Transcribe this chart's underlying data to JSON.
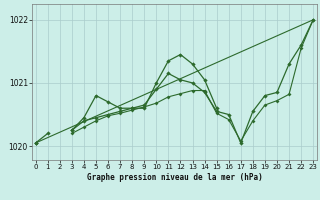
{
  "title": "Graphe pression niveau de la mer (hPa)",
  "background_color": "#cceee8",
  "grid_color": "#aacccc",
  "line_color": "#2d6a2d",
  "x_values": [
    0,
    1,
    2,
    3,
    4,
    5,
    6,
    7,
    8,
    9,
    10,
    11,
    12,
    13,
    14,
    15,
    16,
    17,
    18,
    19,
    20,
    21,
    22,
    23
  ],
  "series_upper": [
    1020.05,
    null,
    null,
    1020.25,
    1020.45,
    1020.8,
    1020.7,
    1020.6,
    1020.6,
    1020.6,
    1021.0,
    1021.35,
    1021.45,
    1021.3,
    1021.05,
    1020.6,
    null,
    null,
    null,
    null,
    null,
    null,
    null,
    null
  ],
  "series_mid": [
    1020.05,
    1020.2,
    null,
    1020.25,
    1020.4,
    1020.45,
    1020.5,
    1020.55,
    1020.6,
    1020.65,
    1020.9,
    1021.15,
    1021.05,
    1021.0,
    1020.85,
    1020.55,
    1020.5,
    1020.05,
    1020.55,
    1020.8,
    1020.85,
    1021.3,
    1021.6,
    1022.0
  ],
  "series_low": [
    1020.05,
    null,
    null,
    1020.2,
    1020.3,
    1020.4,
    1020.48,
    1020.52,
    1020.57,
    1020.62,
    1020.68,
    1020.78,
    1020.83,
    1020.88,
    1020.88,
    1020.52,
    1020.42,
    1020.08,
    1020.4,
    1020.65,
    1020.72,
    1020.82,
    1021.55,
    1022.0
  ],
  "series_line": [
    1020.05,
    1022.0
  ],
  "series_line_x": [
    0,
    23
  ],
  "ylim_min": 1019.78,
  "ylim_max": 1022.25,
  "xlim_min": -0.3,
  "xlim_max": 23.3,
  "yticks": [
    1020,
    1021,
    1022
  ],
  "xticks": [
    0,
    1,
    2,
    3,
    4,
    5,
    6,
    7,
    8,
    9,
    10,
    11,
    12,
    13,
    14,
    15,
    16,
    17,
    18,
    19,
    20,
    21,
    22,
    23
  ]
}
